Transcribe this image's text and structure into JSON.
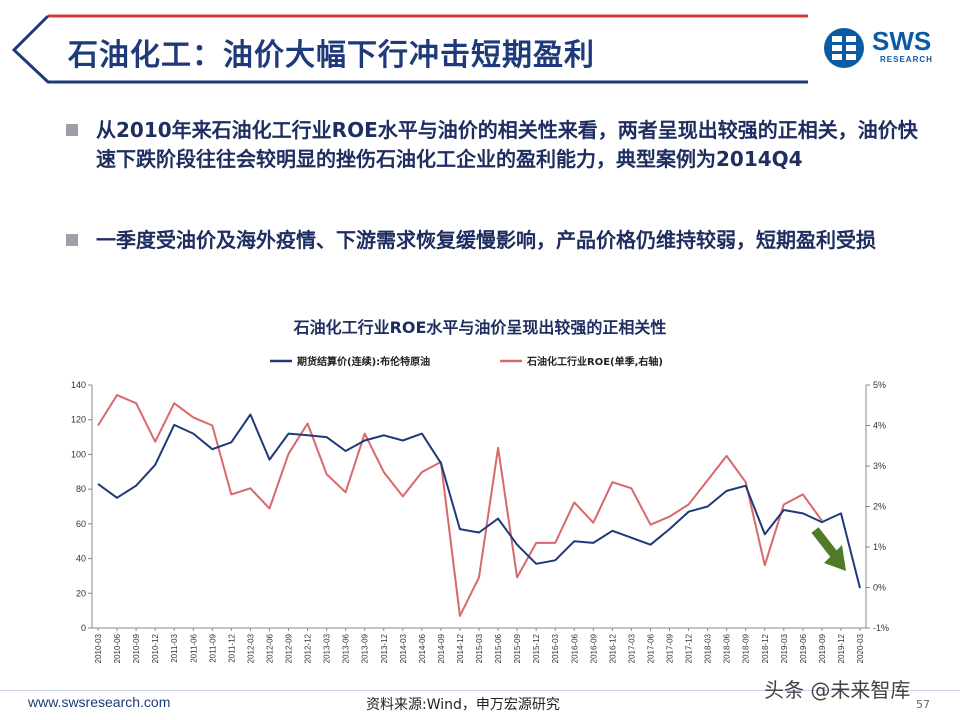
{
  "header": {
    "title": "石油化工：油价大幅下行冲击短期盈利",
    "logo_text": "SWS",
    "logo_sub": "RESEARCH"
  },
  "bullets": [
    "从2010年来石油化工行业ROE水平与油价的相关性来看，两者呈现出较强的正相关，油价快速下跌阶段往往会较明显的挫伤石油化工企业的盈利能力，典型案例为2014Q4",
    "一季度受油价及海外疫情、下游需求恢复缓慢影响，产品价格仍维持较弱，短期盈利受损"
  ],
  "colors": {
    "title": "#1f3a7a",
    "oil_series": "#1f3a7a",
    "roe_series": "#d9686c",
    "arrow": "#4f7a28"
  },
  "chart_data": {
    "type": "line",
    "title": "石油化工行业ROE水平与油价呈现出较强的正相关性",
    "categories": [
      "2010-03",
      "2010-06",
      "2010-09",
      "2010-12",
      "2011-03",
      "2011-06",
      "2011-09",
      "2011-12",
      "2012-03",
      "2012-06",
      "2012-09",
      "2012-12",
      "2013-03",
      "2013-06",
      "2013-09",
      "2013-12",
      "2014-03",
      "2014-06",
      "2014-09",
      "2014-12",
      "2015-03",
      "2015-06",
      "2015-09",
      "2015-12",
      "2016-03",
      "2016-06",
      "2016-09",
      "2016-12",
      "2017-03",
      "2017-06",
      "2017-09",
      "2017-12",
      "2018-03",
      "2018-06",
      "2018-09",
      "2018-12",
      "2019-03",
      "2019-06",
      "2019-09",
      "2019-12",
      "2020-03"
    ],
    "left_axis": {
      "min": 0,
      "max": 140,
      "ticks": [
        "0",
        "20",
        "40",
        "60",
        "80",
        "100",
        "120",
        "140"
      ]
    },
    "right_axis": {
      "min": -1,
      "max": 5,
      "ticks": [
        "-1%",
        "0%",
        "1%",
        "2%",
        "3%",
        "4%",
        "5%"
      ]
    },
    "series": [
      {
        "name": "期货结算价(连续):布伦特原油",
        "axis": "left",
        "values": [
          83,
          75,
          82,
          94,
          117,
          112,
          103,
          107,
          123,
          97,
          112,
          111,
          110,
          102,
          108,
          111,
          108,
          112,
          95,
          57,
          55,
          63,
          48,
          37,
          39,
          50,
          49,
          56,
          52,
          48,
          57,
          67,
          70,
          79,
          82,
          54,
          68,
          66,
          61,
          66,
          23
        ]
      },
      {
        "name": "石油化工行业ROE(单季,右轴)",
        "axis": "right",
        "values": [
          4.0,
          4.75,
          4.55,
          3.6,
          4.55,
          4.2,
          4.0,
          2.3,
          2.45,
          1.95,
          3.3,
          4.05,
          2.8,
          2.35,
          3.8,
          2.85,
          2.25,
          2.85,
          3.1,
          -0.7,
          0.25,
          3.45,
          0.25,
          1.1,
          1.1,
          2.1,
          1.6,
          2.6,
          2.45,
          1.55,
          1.75,
          2.05,
          2.65,
          3.25,
          2.6,
          0.55,
          2.05,
          2.3,
          1.65,
          null,
          null
        ]
      }
    ],
    "legend_position": "top-center"
  },
  "footer": {
    "url": "www.swsresearch.com",
    "source": "资料来源:Wind，申万宏源研究",
    "page": "57",
    "watermark": "头条 @未来智库"
  }
}
